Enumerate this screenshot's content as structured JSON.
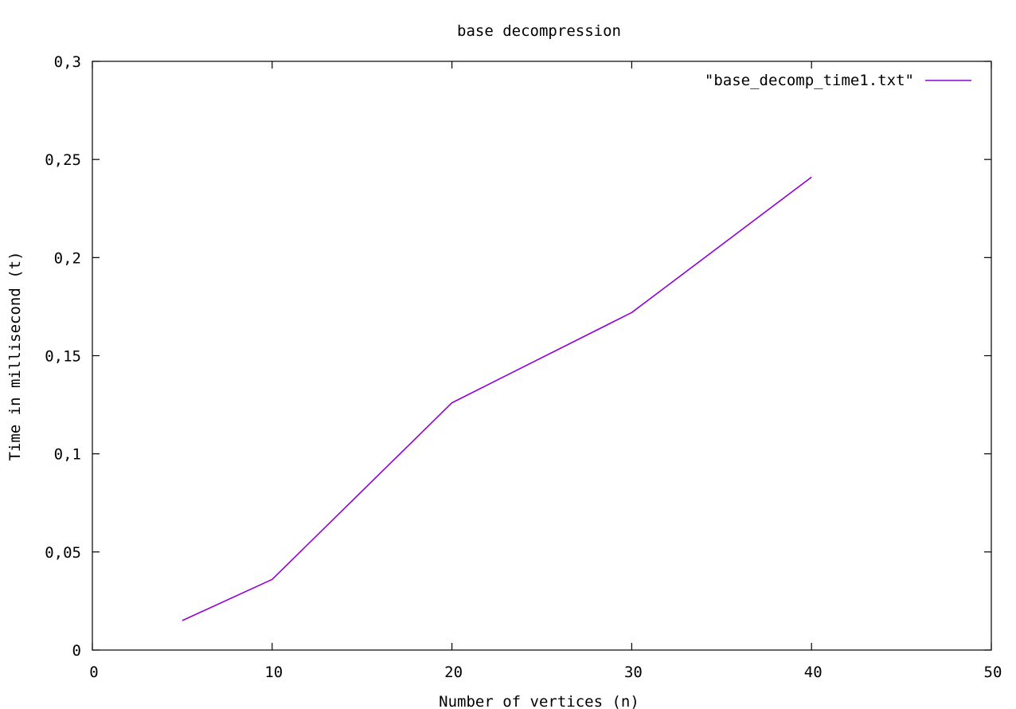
{
  "chart_data": {
    "type": "line",
    "title": "base decompression",
    "xlabel": "Number of vertices (n)",
    "ylabel": "Time in millisecond (t)",
    "xlim": [
      0,
      50
    ],
    "ylim": [
      0,
      0.3
    ],
    "x_ticks": [
      0,
      10,
      20,
      30,
      40,
      50
    ],
    "y_ticks": [
      0,
      0.05,
      0.1,
      0.15,
      0.2,
      0.25,
      0.3
    ],
    "x_tick_labels": [
      "0",
      "10",
      "20",
      "30",
      "40",
      "50"
    ],
    "y_tick_labels": [
      "0",
      "0,05",
      "0,1",
      "0,15",
      "0,2",
      "0,25",
      "0,3"
    ],
    "grid": false,
    "legend_position": "top-right",
    "series": [
      {
        "name": "\"base_decomp_time1.txt\"",
        "color": "#9400d3",
        "x": [
          5,
          10,
          20,
          30,
          40
        ],
        "y": [
          0.015,
          0.036,
          0.126,
          0.172,
          0.241
        ]
      }
    ]
  }
}
